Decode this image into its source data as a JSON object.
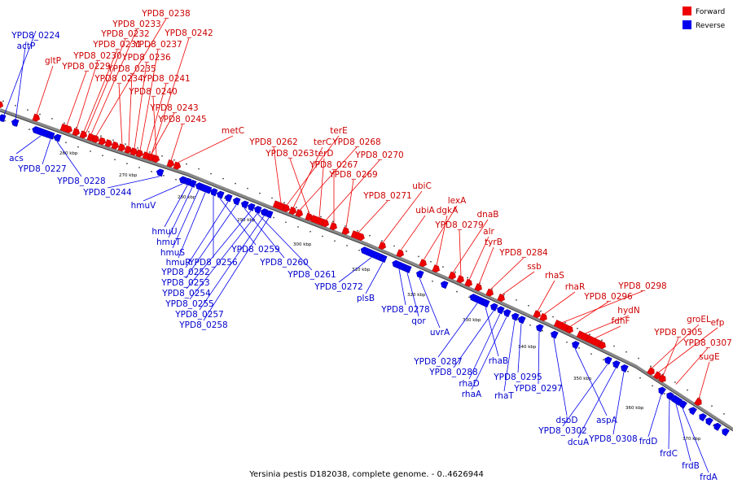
{
  "title": "Yersinia pestis D182038, complete genome. - 0..4626944",
  "legend": {
    "forward": {
      "label": "Forward",
      "color": "#ee0000"
    },
    "reverse": {
      "label": "Reverse",
      "color": "#0000ee"
    }
  },
  "colors": {
    "forward": "#ee0000",
    "reverse": "#0000ee",
    "backbone": "#888888"
  },
  "scale_labels": [
    "260 kbp",
    "270 kbp",
    "280 kbp",
    "290 kbp",
    "300 kbp",
    "310 kbp",
    "320 kbp",
    "330 kbp",
    "340 kbp",
    "350 kbp",
    "360 kbp",
    "370 kbp"
  ],
  "forward_labels": [
    "YPD8_0238",
    "YPD8_0233",
    "YPD8_0242",
    "YPD8_0232",
    "YPD8_0231",
    "YPD8_0237",
    "gltP",
    "YPD8_0230",
    "YPD8_0236",
    "YPD8_0229",
    "YPD8_0235",
    "YPD8_0234",
    "YPD8_0241",
    "YPD8_0240",
    "YPD8_0243",
    "YPD8_0245",
    "metC",
    "terE",
    "YPD8_0262",
    "terC",
    "YPD8_0268",
    "YPD8_0263",
    "terD",
    "YPD8_0270",
    "YPD8_0267",
    "YPD8_0269",
    "ubiC",
    "YPD8_0271",
    "lexA",
    "ubiA",
    "dgkA",
    "dnaB",
    "YPD8_0279",
    "alr",
    "tyrB",
    "YPD8_0284",
    "ssb",
    "rhaS",
    "rhaR",
    "YPD8_0298",
    "YPD8_0296",
    "hydN",
    "fdhF",
    "groEL",
    "efp",
    "YPD8_0305",
    "YPD8_0307",
    "sugE"
  ],
  "reverse_labels": [
    "YPD8_0224",
    "actP",
    "acs",
    "YPD8_0227",
    "YPD8_0228",
    "YPD8_0244",
    "hmuV",
    "hmuU",
    "hmuT",
    "hmuS",
    "hmuR",
    "YPD8_0256",
    "YPD8_0259",
    "YPD8_0252",
    "YPD8_0253",
    "YPD8_0260",
    "YPD8_0254",
    "YPD8_0261",
    "YPD8_0255",
    "YPD8_0257",
    "YPD8_0272",
    "YPD8_0258",
    "plsB",
    "YPD8_0278",
    "qor",
    "uvrA",
    "YPD8_0287",
    "rhaB",
    "YPD8_0288",
    "rhaD",
    "rhaA",
    "rhaT",
    "YPD8_0295",
    "YPD8_0297",
    "dsbD",
    "aspA",
    "YPD8_0302",
    "dcuA",
    "YPD8_0308",
    "frdD",
    "frdC",
    "frdB",
    "frdA"
  ]
}
